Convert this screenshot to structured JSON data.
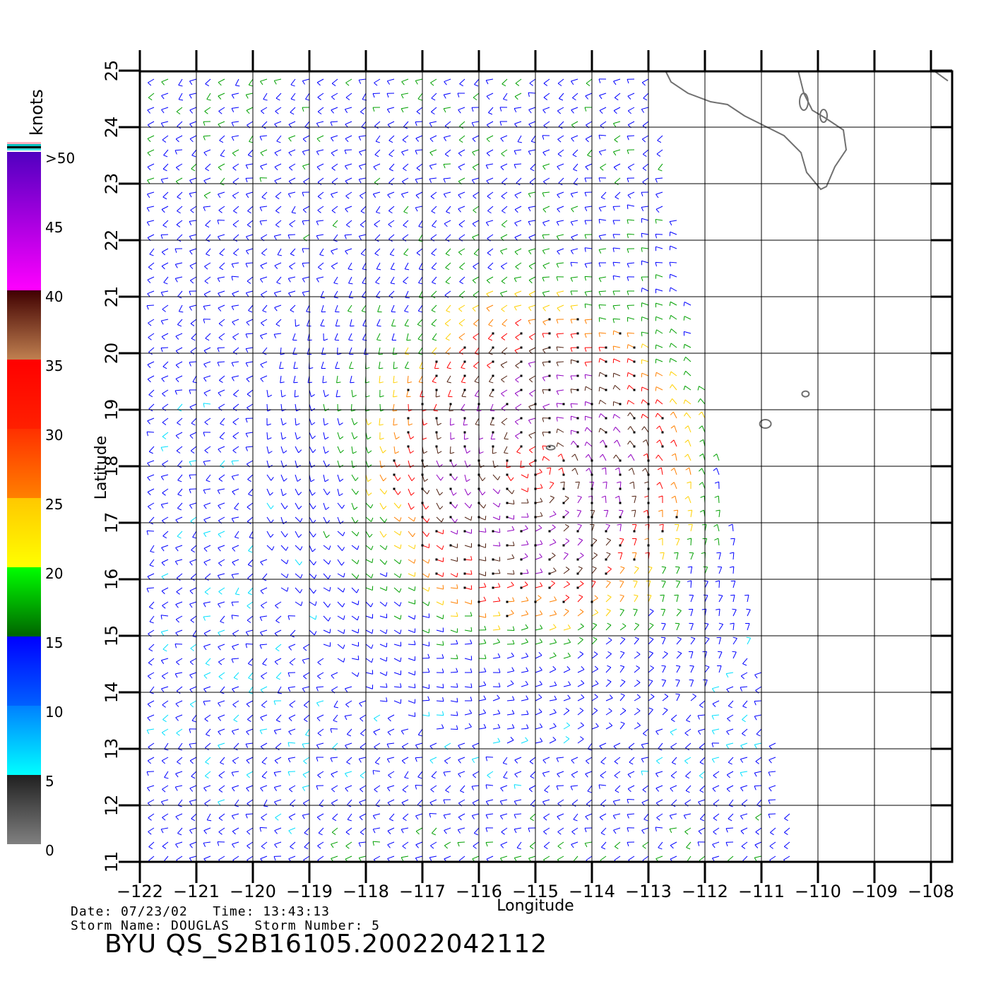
{
  "map": {
    "xlabel": "Longitude",
    "ylabel": "Latitude",
    "lon_range": [
      -122,
      -107.6
    ],
    "lat_range": [
      11,
      25
    ],
    "lon_ticks": [
      "−122",
      "−121",
      "−120",
      "−119",
      "−118",
      "−117",
      "−116",
      "−115",
      "−114",
      "−113",
      "−112",
      "−111",
      "−110",
      "−109",
      "−108"
    ],
    "lat_ticks": [
      "11",
      "12",
      "13",
      "14",
      "15",
      "16",
      "17",
      "18",
      "19",
      "20",
      "21",
      "22",
      "23",
      "24",
      "25"
    ],
    "storm_center": {
      "lon": -115,
      "lat": 18
    },
    "swath_east_edge": [
      [
        -112.9,
        25
      ],
      [
        -112.4,
        22
      ],
      [
        -111.9,
        19
      ],
      [
        -111.4,
        16.5
      ],
      [
        -110.9,
        14
      ],
      [
        -110.4,
        11.5
      ],
      [
        -110.3,
        11
      ]
    ]
  },
  "colorbar": {
    "unit_label": "knots",
    "labels": [
      ">50",
      "45",
      "40",
      "35",
      "30",
      "25",
      "20",
      "15",
      "10",
      "5",
      "0"
    ],
    "bands": [
      {
        "from": 0,
        "to": 5,
        "colors": [
          "#808080",
          "#202020"
        ]
      },
      {
        "from": 5,
        "to": 10,
        "colors": [
          "#00ffff",
          "#0080ff"
        ]
      },
      {
        "from": 10,
        "to": 15,
        "colors": [
          "#0060ff",
          "#0000ff"
        ]
      },
      {
        "from": 15,
        "to": 20,
        "colors": [
          "#006400",
          "#00ff00"
        ]
      },
      {
        "from": 20,
        "to": 25,
        "colors": [
          "#ffff00",
          "#ffc800"
        ]
      },
      {
        "from": 25,
        "to": 30,
        "colors": [
          "#ff8000",
          "#ff3000"
        ]
      },
      {
        "from": 30,
        "to": 35,
        "colors": [
          "#ff2000",
          "#ff0000"
        ]
      },
      {
        "from": 35,
        "to": 40,
        "colors": [
          "#c08050",
          "#400000"
        ]
      },
      {
        "from": 40,
        "to": 50,
        "colors": [
          "#ff00ff",
          "#5000c0"
        ]
      }
    ]
  },
  "footer": {
    "line1": "Date: 07/23/02   Time: 13:43:13",
    "line2": "Storm Name: DOUGLAS   Storm Number: 5",
    "product_id": "BYU QS_S2B16105.20022042112"
  },
  "colors": {
    "coast": "#707070",
    "grid": "#000000",
    "wind_blue": "#0000ff",
    "wind_green": "#00a000",
    "wind_yellow": "#ffd000",
    "wind_orange": "#ff8000",
    "wind_red": "#ff0000",
    "wind_brown": "#502010",
    "wind_purple": "#9000c0",
    "wind_cyan": "#00e0ff",
    "flag_marker": "#000000"
  },
  "icons": {
    "wind_barb": "wind-barb-icon",
    "coastline": "coastline-shape"
  }
}
